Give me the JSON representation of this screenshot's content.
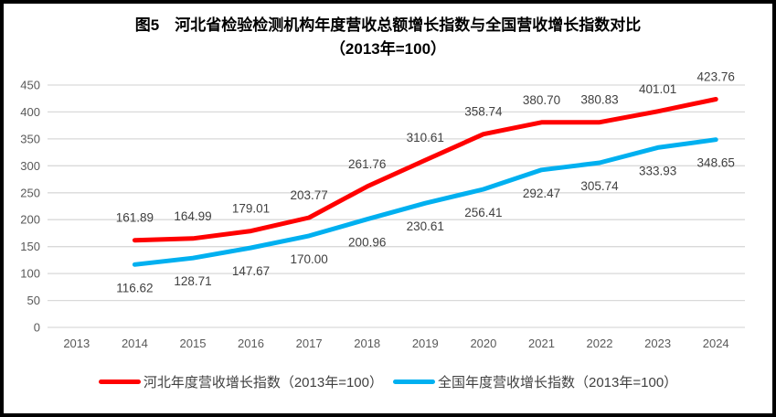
{
  "figure": {
    "title_line1": "图5　河北省检验检测机构年度营收总额增长指数与全国营收增长指数对比",
    "title_line2": "（2013年=100）"
  },
  "chart_data": {
    "type": "line",
    "title": "图5　河北省检验检测机构年度营收总额增长指数与全国营收增长指数对比（2013年=100）",
    "categories": [
      "2013",
      "2014",
      "2015",
      "2016",
      "2017",
      "2018",
      "2019",
      "2020",
      "2021",
      "2022",
      "2023",
      "2024"
    ],
    "series": [
      {
        "name": "河北年度营收增长指数（2013年=100）",
        "color": "#FF0000",
        "label_position": "above",
        "values": [
          null,
          161.89,
          164.99,
          179.01,
          203.77,
          261.76,
          310.61,
          358.74,
          380.7,
          380.83,
          401.01,
          423.76
        ]
      },
      {
        "name": "全国年度营收增长指数（2013年=100）",
        "color": "#00B0F0",
        "label_position": "below",
        "values": [
          null,
          116.62,
          128.71,
          147.67,
          170.0,
          200.96,
          230.61,
          256.41,
          292.47,
          305.74,
          333.93,
          348.65
        ]
      }
    ],
    "ylim": [
      0,
      450
    ],
    "ytick_step": 50,
    "yticks": [
      0,
      50,
      100,
      150,
      200,
      250,
      300,
      350,
      400,
      450
    ],
    "label_decimals": 2,
    "grid": "horizontal",
    "legend_position": "bottom",
    "colors": {
      "grid": "#D9D9D9",
      "axis_text": "#595959",
      "data_label_text": "#404040",
      "title_text": "#000000",
      "frame_border": "#000000",
      "background": "#FFFFFF"
    }
  }
}
